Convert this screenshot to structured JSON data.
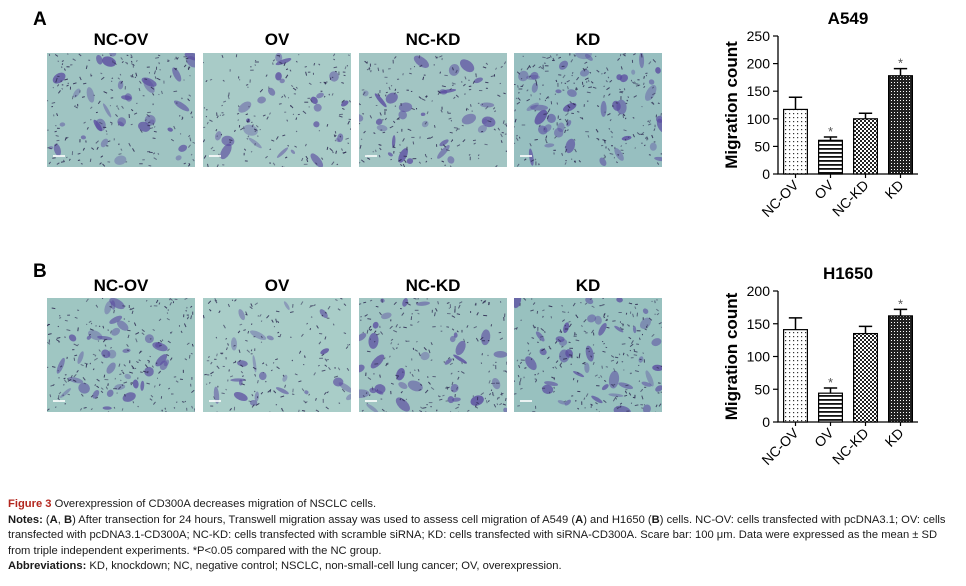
{
  "panels": [
    {
      "letter": "A",
      "images": [
        {
          "label": "NC-OV",
          "density": 0.55,
          "tint": "#9fc4c2"
        },
        {
          "label": "OV",
          "density": 0.35,
          "tint": "#a8cbc7"
        },
        {
          "label": "NC-KD",
          "density": 0.45,
          "tint": "#a2c5c3"
        },
        {
          "label": "KD",
          "density": 0.75,
          "tint": "#97bfc0"
        }
      ]
    },
    {
      "letter": "B",
      "images": [
        {
          "label": "NC-OV",
          "density": 0.6,
          "tint": "#9fc6c2"
        },
        {
          "label": "OV",
          "density": 0.3,
          "tint": "#a9cdc8"
        },
        {
          "label": "NC-KD",
          "density": 0.55,
          "tint": "#a0c5c2"
        },
        {
          "label": "KD",
          "density": 0.7,
          "tint": "#98c1bf"
        }
      ]
    }
  ],
  "chart_data": [
    {
      "type": "bar",
      "title": "A549",
      "ylabel": "Migration count",
      "xlabel": "",
      "categories": [
        "NC-OV",
        "OV",
        "NC-KD",
        "KD"
      ],
      "values": [
        117,
        61,
        100,
        178
      ],
      "errors": [
        22,
        6,
        10,
        13
      ],
      "significant": [
        false,
        true,
        false,
        true
      ],
      "significance_mark": "*",
      "ylim": [
        0,
        250
      ],
      "yticks": [
        "0",
        "50",
        "100",
        "150",
        "200",
        "250"
      ],
      "patterns": [
        "dots",
        "hlines",
        "checker",
        "dense"
      ]
    },
    {
      "type": "bar",
      "title": "H1650",
      "ylabel": "Migration count",
      "xlabel": "",
      "categories": [
        "NC-OV",
        "OV",
        "NC-KD",
        "KD"
      ],
      "values": [
        141,
        44,
        135,
        162
      ],
      "errors": [
        18,
        8,
        11,
        10
      ],
      "significant": [
        false,
        true,
        false,
        true
      ],
      "significance_mark": "*",
      "ylim": [
        0,
        200
      ],
      "yticks": [
        "0",
        "50",
        "100",
        "150",
        "200"
      ],
      "patterns": [
        "dots",
        "hlines",
        "checker",
        "dense"
      ]
    }
  ],
  "caption": {
    "figure_label": "Figure 3",
    "figure_title": " Overexpression of CD300A decreases migration of NSCLC cells.",
    "notes_head": "Notes:",
    "notes_text_1": " (",
    "notes_A": "A",
    "notes_text_2": ", ",
    "notes_B": "B",
    "notes_text_3": ") After transection for 24 hours, Transwell migration assay was used to assess cell migration of A549 (",
    "notes_A2": "A",
    "notes_text_4": ") and H1650 (",
    "notes_B2": "B",
    "notes_text_5": ") cells. NC-OV: cells transfected with pcDNA3.1; OV: cells transfected with pcDNA3.1-CD300A; NC-KD: cells transfected with scramble siRNA; KD: cells transfected with siRNA-CD300A. Scare bar: 100 μm. Data were expressed as the mean ± SD from triple independent experiments. *P<0.05 compared with the NC group.",
    "abbrev_head": "Abbreviations:",
    "abbrev_text": " KD, knockdown; NC, negative control; NSCLC, non-small-cell lung cancer; OV, overexpression."
  }
}
